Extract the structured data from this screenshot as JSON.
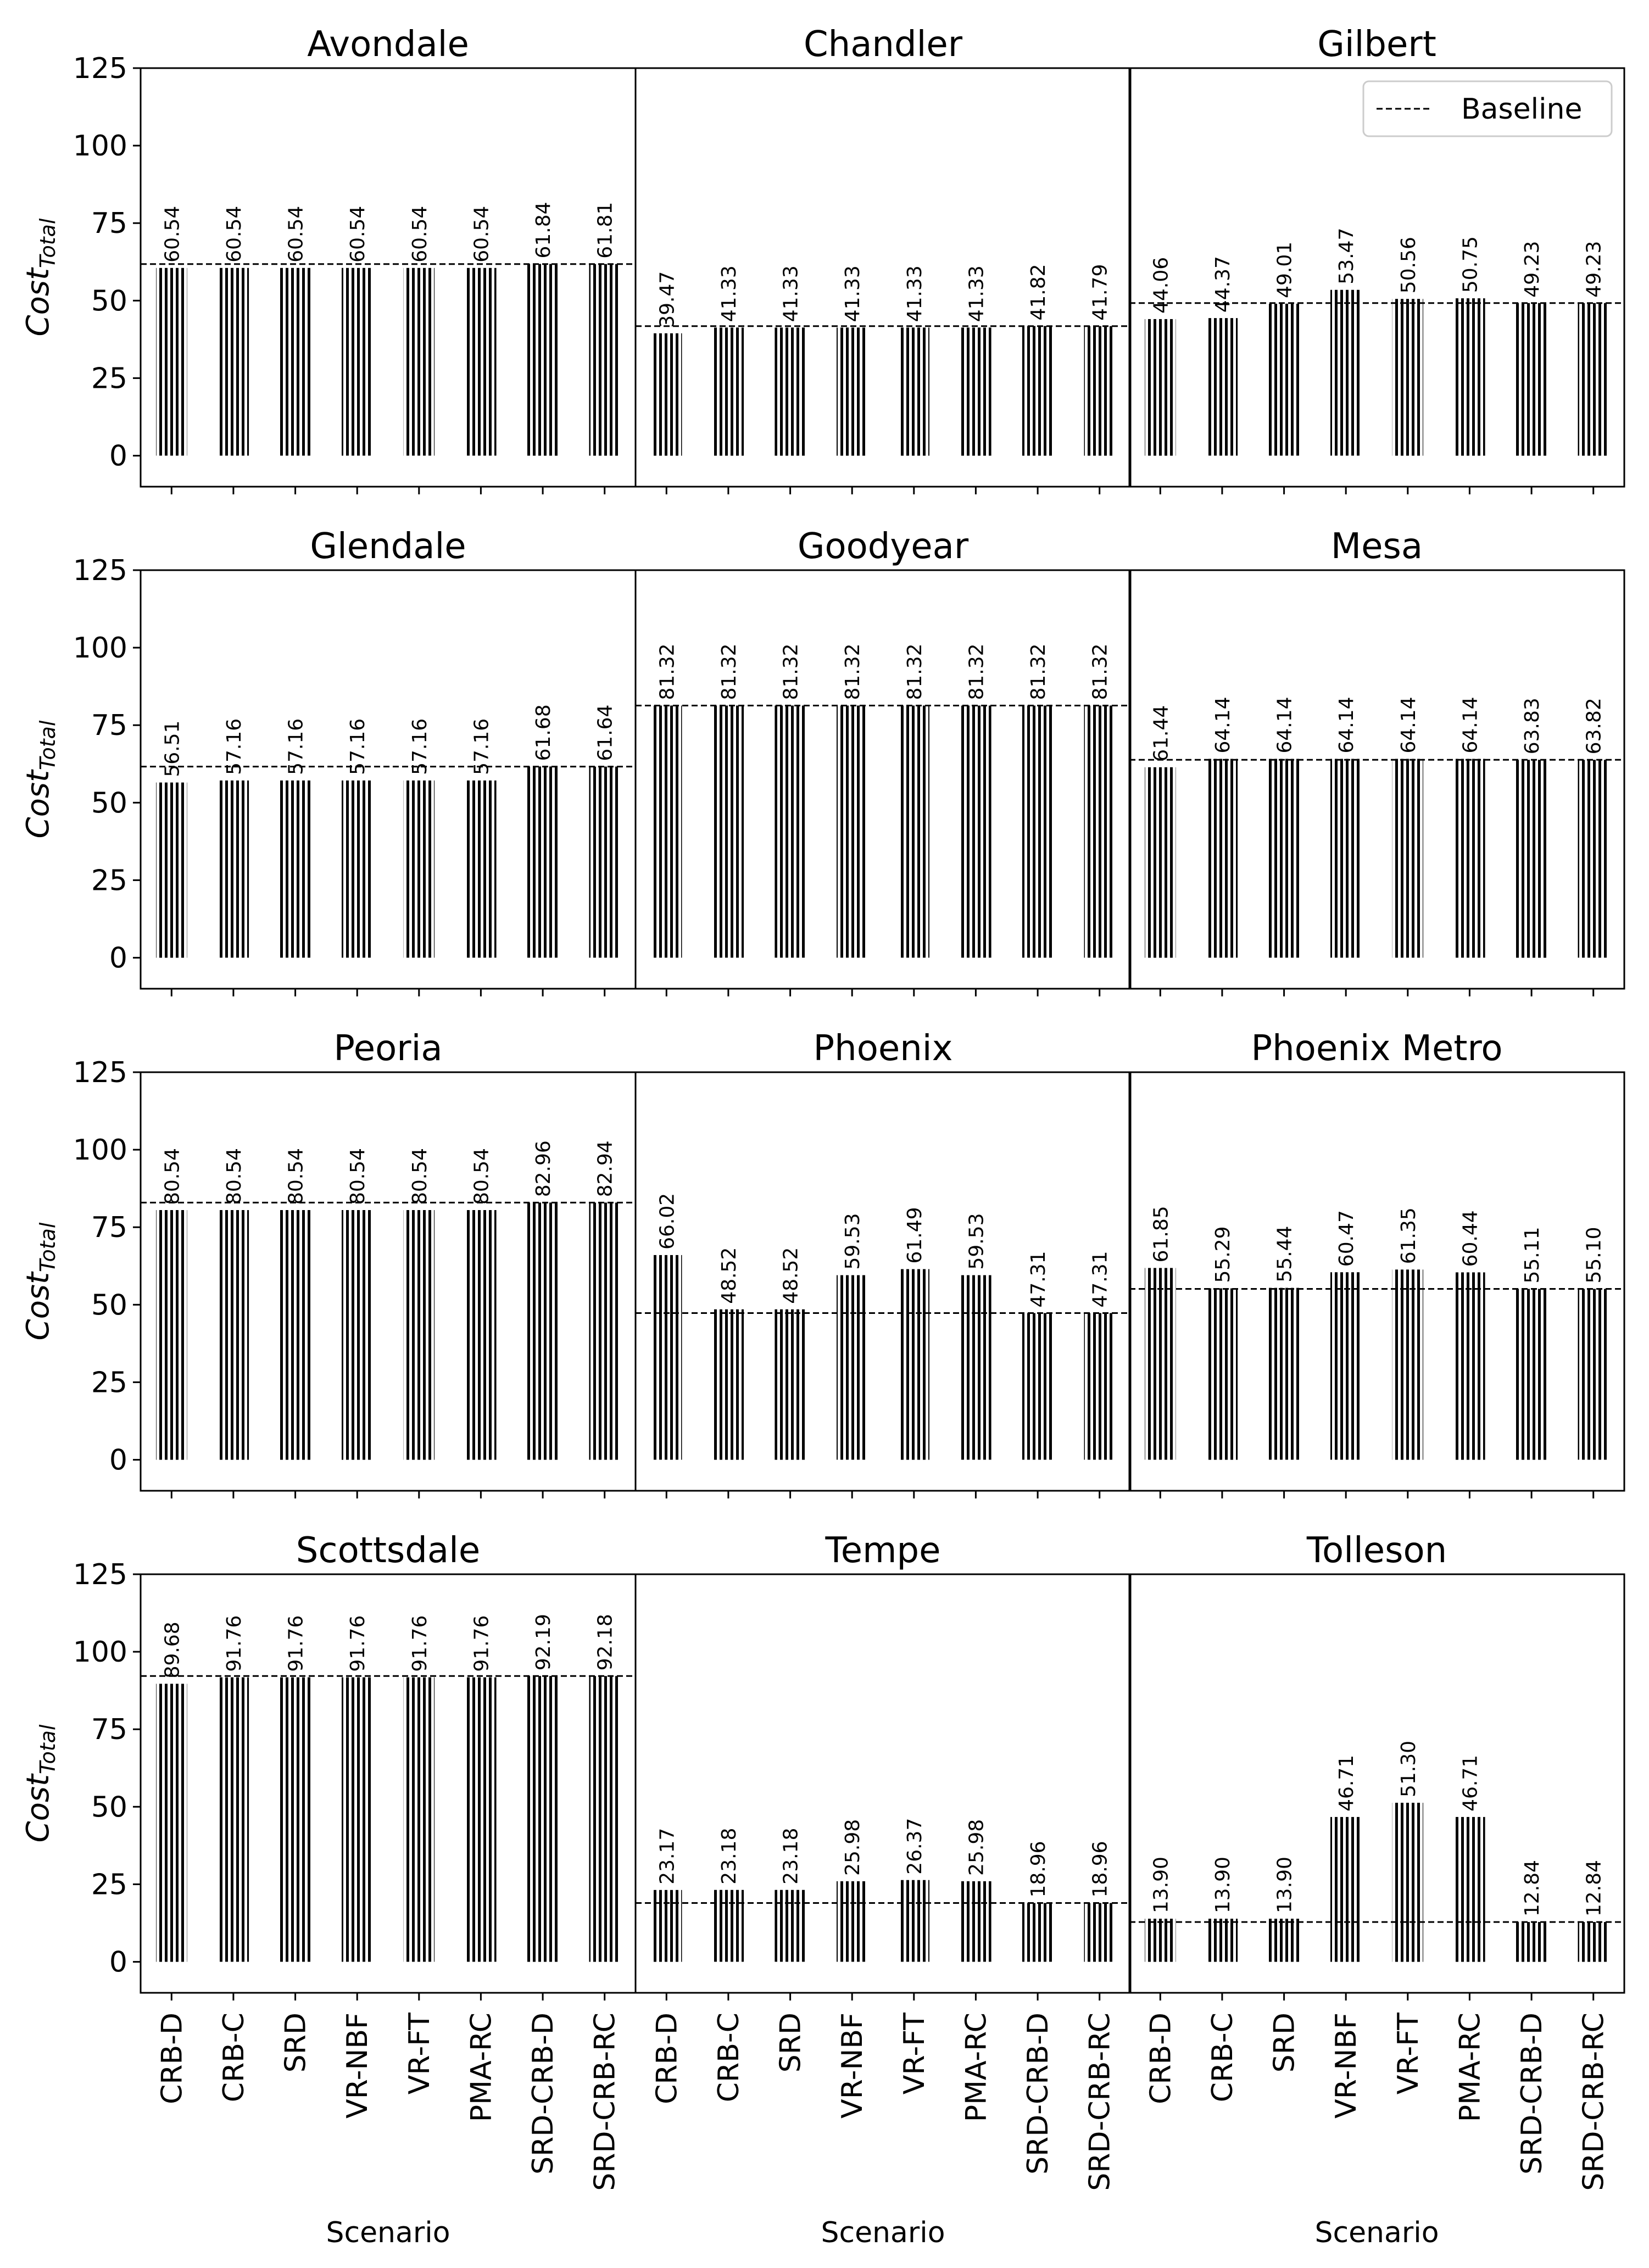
{
  "chart_data": {
    "type": "bar",
    "ylim": [
      -10,
      125
    ],
    "yticks": [
      0,
      25,
      50,
      75,
      100,
      125
    ],
    "ylabel_main": "Cost",
    "ylabel_sub": "Total",
    "xlabel": "Scenario",
    "categories": [
      "CRB-D",
      "CRB-C",
      "SRD",
      "VR-NBF",
      "VR-FT",
      "PMA-RC",
      "SRD-CRB-D",
      "SRD-CRB-RC"
    ],
    "legend": {
      "label": "Baseline",
      "position": "top-right"
    },
    "panels": [
      {
        "title": "Avondale",
        "baseline": 61.81,
        "values": [
          60.54,
          60.54,
          60.54,
          60.54,
          60.54,
          60.54,
          61.84,
          61.81
        ],
        "labels": [
          "60.54",
          "60.54",
          "60.54",
          "60.54",
          "60.54",
          "60.54",
          "61.84",
          "61.81"
        ]
      },
      {
        "title": "Chandler",
        "baseline": 41.79,
        "values": [
          39.47,
          41.33,
          41.33,
          41.33,
          41.33,
          41.33,
          41.82,
          41.79
        ],
        "labels": [
          "39.47",
          "41.33",
          "41.33",
          "41.33",
          "41.33",
          "41.33",
          "41.82",
          "41.79"
        ]
      },
      {
        "title": "Gilbert",
        "baseline": 49.23,
        "values": [
          44.06,
          44.37,
          49.01,
          53.47,
          50.56,
          50.75,
          49.23,
          49.23
        ],
        "labels": [
          "44.06",
          "44.37",
          "49.01",
          "53.47",
          "50.56",
          "50.75",
          "49.23",
          "49.23"
        ]
      },
      {
        "title": "Glendale",
        "baseline": 61.64,
        "values": [
          56.51,
          57.16,
          57.16,
          57.16,
          57.16,
          57.16,
          61.68,
          61.64
        ],
        "labels": [
          "56.51",
          "57.16",
          "57.16",
          "57.16",
          "57.16",
          "57.16",
          "61.68",
          "61.64"
        ]
      },
      {
        "title": "Goodyear",
        "baseline": 81.32,
        "values": [
          81.32,
          81.32,
          81.32,
          81.32,
          81.32,
          81.32,
          81.32,
          81.32
        ],
        "labels": [
          "81.32",
          "81.32",
          "81.32",
          "81.32",
          "81.32",
          "81.32",
          "81.32",
          "81.32"
        ]
      },
      {
        "title": "Mesa",
        "baseline": 63.82,
        "values": [
          61.44,
          64.14,
          64.14,
          64.14,
          64.14,
          64.14,
          63.83,
          63.82
        ],
        "labels": [
          "61.44",
          "64.14",
          "64.14",
          "64.14",
          "64.14",
          "64.14",
          "63.83",
          "63.82"
        ]
      },
      {
        "title": "Peoria",
        "baseline": 82.94,
        "values": [
          80.54,
          80.54,
          80.54,
          80.54,
          80.54,
          80.54,
          82.96,
          82.94
        ],
        "labels": [
          "80.54",
          "80.54",
          "80.54",
          "80.54",
          "80.54",
          "80.54",
          "82.96",
          "82.94"
        ]
      },
      {
        "title": "Phoenix",
        "baseline": 47.31,
        "values": [
          66.02,
          48.52,
          48.52,
          59.53,
          61.49,
          59.53,
          47.31,
          47.31
        ],
        "labels": [
          "66.02",
          "48.52",
          "48.52",
          "59.53",
          "61.49",
          "59.53",
          "47.31",
          "47.31"
        ]
      },
      {
        "title": "Phoenix Metro",
        "baseline": 55.1,
        "values": [
          61.85,
          55.29,
          55.44,
          60.47,
          61.35,
          60.44,
          55.11,
          55.1
        ],
        "labels": [
          "61.85",
          "55.29",
          "55.44",
          "60.47",
          "61.35",
          "60.44",
          "55.11",
          "55.10"
        ]
      },
      {
        "title": "Scottsdale",
        "baseline": 92.18,
        "values": [
          89.68,
          91.76,
          91.76,
          91.76,
          91.76,
          91.76,
          92.19,
          92.18
        ],
        "labels": [
          "89.68",
          "91.76",
          "91.76",
          "91.76",
          "91.76",
          "91.76",
          "92.19",
          "92.18"
        ]
      },
      {
        "title": "Tempe",
        "baseline": 18.96,
        "values": [
          23.17,
          23.18,
          23.18,
          25.98,
          26.37,
          25.98,
          18.96,
          18.96
        ],
        "labels": [
          "23.17",
          "23.18",
          "23.18",
          "25.98",
          "26.37",
          "25.98",
          "18.96",
          "18.96"
        ]
      },
      {
        "title": "Tolleson",
        "baseline": 12.84,
        "values": [
          13.9,
          13.9,
          13.9,
          46.71,
          51.3,
          46.71,
          12.84,
          12.84
        ],
        "labels": [
          "13.90",
          "13.90",
          "13.90",
          "46.71",
          "51.30",
          "46.71",
          "12.84",
          "12.84"
        ]
      }
    ]
  }
}
